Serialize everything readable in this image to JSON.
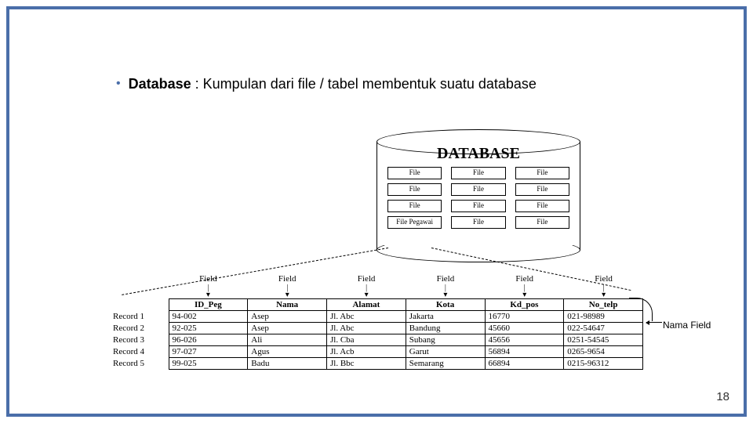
{
  "bullet": {
    "term": "Database",
    "rest": " : Kumpulan dari file / tabel membentuk suatu database"
  },
  "db": {
    "title": "DATABASE",
    "files": [
      "File",
      "File",
      "File",
      "File",
      "File",
      "File",
      "File",
      "File",
      "File",
      "File Pegawai",
      "File",
      "File"
    ]
  },
  "fieldLabel": "Field",
  "arrows": "▼",
  "table": {
    "columns": [
      "ID_Peg",
      "Nama",
      "Alamat",
      "Kota",
      "Kd_pos",
      "No_telp"
    ],
    "rowLabels": [
      "Record 1",
      "Record 2",
      "Record 3",
      "Record 4",
      "Record 5"
    ],
    "rows": [
      [
        "94-002",
        "Asep",
        "Jl. Abc",
        "Jakarta",
        "16770",
        "021-98989"
      ],
      [
        "92-025",
        "Asep",
        "Jl. Abc",
        "Bandung",
        "45660",
        "022-54647"
      ],
      [
        "96-026",
        "Ali",
        "Jl. Cba",
        "Subang",
        "45656",
        "0251-54545"
      ],
      [
        "97-027",
        "Agus",
        "Jl. Acb",
        "Garut",
        "56894",
        "0265-9654"
      ],
      [
        "99-025",
        "Badu",
        "Jl. Bbc",
        "Semarang",
        "66894",
        "0215-96312"
      ]
    ]
  },
  "namaField": "Nama Field",
  "pageNumber": "18",
  "colors": {
    "border": "#4a6ea9"
  }
}
